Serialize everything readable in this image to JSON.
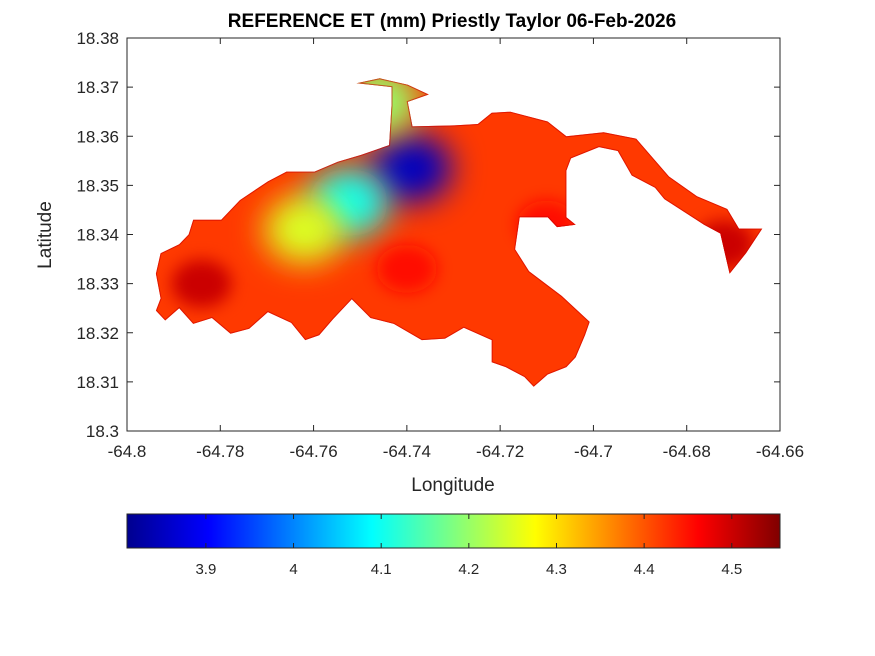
{
  "chart_data": {
    "type": "heatmap",
    "title": "REFERENCE ET (mm) Priestly Taylor 06-Feb-2026",
    "xlabel": "Longitude",
    "ylabel": "Latitude",
    "xlim": [
      -64.8,
      -64.66
    ],
    "ylim": [
      18.3,
      18.38
    ],
    "xticks": [
      -64.8,
      -64.78,
      -64.76,
      -64.74,
      -64.72,
      -64.7,
      -64.68,
      -64.66
    ],
    "xtick_labels": [
      "-64.8",
      "-64.78",
      "-64.76",
      "-64.74",
      "-64.72",
      "-64.7",
      "-64.68",
      "-64.66"
    ],
    "yticks": [
      18.3,
      18.31,
      18.32,
      18.33,
      18.34,
      18.35,
      18.36,
      18.37,
      18.38
    ],
    "ytick_labels": [
      "18.3",
      "18.31",
      "18.32",
      "18.33",
      "18.34",
      "18.35",
      "18.36",
      "18.37",
      "18.38"
    ],
    "colormap": "jet",
    "colorbar": {
      "location": "bottom",
      "range": [
        3.81,
        4.555
      ],
      "ticks": [
        3.9,
        4.0,
        4.1,
        4.2,
        4.3,
        4.4,
        4.5
      ],
      "tick_labels": [
        "3.9",
        "4",
        "4.1",
        "4.2",
        "4.3",
        "4.4",
        "4.5"
      ]
    },
    "boundary": [
      [
        -64.7928,
        18.3362
      ],
      [
        -64.7888,
        18.338
      ],
      [
        -64.7868,
        18.34
      ],
      [
        -64.7858,
        18.343
      ],
      [
        -64.7798,
        18.343
      ],
      [
        -64.7758,
        18.347
      ],
      [
        -64.7698,
        18.3508
      ],
      [
        -64.7658,
        18.3528
      ],
      [
        -64.7598,
        18.3528
      ],
      [
        -64.7548,
        18.3548
      ],
      [
        -64.7498,
        18.3562
      ],
      [
        -64.7438,
        18.3582
      ],
      [
        -64.7433,
        18.3662
      ],
      [
        -64.7433,
        18.37
      ],
      [
        -64.7508,
        18.3708
      ],
      [
        -64.7458,
        18.3718
      ],
      [
        -64.7398,
        18.3705
      ],
      [
        -64.7353,
        18.3685
      ],
      [
        -64.7398,
        18.367
      ],
      [
        -64.7388,
        18.362
      ],
      [
        -64.7298,
        18.3622
      ],
      [
        -64.7248,
        18.3625
      ],
      [
        -64.7218,
        18.3648
      ],
      [
        -64.7178,
        18.365
      ],
      [
        -64.7098,
        18.363
      ],
      [
        -64.7058,
        18.36
      ],
      [
        -64.6978,
        18.3608
      ],
      [
        -64.6908,
        18.3595
      ],
      [
        -64.6838,
        18.3518
      ],
      [
        -64.6778,
        18.3478
      ],
      [
        -64.6713,
        18.3452
      ],
      [
        -64.6688,
        18.3412
      ],
      [
        -64.6638,
        18.3412
      ],
      [
        -64.6673,
        18.3362
      ],
      [
        -64.6708,
        18.332
      ],
      [
        -64.6728,
        18.3402
      ],
      [
        -64.6763,
        18.342
      ],
      [
        -64.6848,
        18.3472
      ],
      [
        -64.6868,
        18.3495
      ],
      [
        -64.6918,
        18.352
      ],
      [
        -64.6948,
        18.357
      ],
      [
        -64.6988,
        18.3578
      ],
      [
        -64.7048,
        18.3555
      ],
      [
        -64.7058,
        18.353
      ],
      [
        -64.7058,
        18.3435
      ],
      [
        -64.7038,
        18.342
      ],
      [
        -64.7078,
        18.3415
      ],
      [
        -64.7098,
        18.3435
      ],
      [
        -64.7158,
        18.3435
      ],
      [
        -64.7168,
        18.337
      ],
      [
        -64.7138,
        18.3325
      ],
      [
        -64.7068,
        18.3275
      ],
      [
        -64.7008,
        18.3222
      ],
      [
        -64.7018,
        18.3195
      ],
      [
        -64.7038,
        18.315
      ],
      [
        -64.7058,
        18.313
      ],
      [
        -64.7098,
        18.3115
      ],
      [
        -64.7128,
        18.309
      ],
      [
        -64.7148,
        18.311
      ],
      [
        -64.7188,
        18.313
      ],
      [
        -64.7218,
        18.314
      ],
      [
        -64.7218,
        18.3185
      ],
      [
        -64.7278,
        18.321
      ],
      [
        -64.7318,
        18.3188
      ],
      [
        -64.7368,
        18.3185
      ],
      [
        -64.7428,
        18.3218
      ],
      [
        -64.7478,
        18.323
      ],
      [
        -64.7518,
        18.3268
      ],
      [
        -64.7558,
        18.3228
      ],
      [
        -64.7588,
        18.3195
      ],
      [
        -64.7618,
        18.3185
      ],
      [
        -64.7648,
        18.322
      ],
      [
        -64.7698,
        18.3242
      ],
      [
        -64.7738,
        18.3208
      ],
      [
        -64.7778,
        18.3198
      ],
      [
        -64.7818,
        18.323
      ],
      [
        -64.7858,
        18.3218
      ],
      [
        -64.7888,
        18.325
      ],
      [
        -64.7918,
        18.3225
      ],
      [
        -64.7938,
        18.3245
      ],
      [
        -64.7928,
        18.327
      ],
      [
        -64.7938,
        18.332
      ]
    ],
    "value_regions": [
      {
        "description": "Blue minimum",
        "lon": -64.739,
        "lat": 18.3535,
        "value": 3.85
      },
      {
        "description": "Cyan region",
        "lon": -64.7525,
        "lat": 18.3465,
        "value": 4.1
      },
      {
        "description": "Green/yellow band",
        "lon": -64.762,
        "lat": 18.341,
        "value": 4.25
      },
      {
        "description": "Northern tip",
        "lon": -64.746,
        "lat": 18.367,
        "value": 4.2
      },
      {
        "description": "Central-south",
        "lon": -64.74,
        "lat": 18.333,
        "value": 4.45
      },
      {
        "description": "West",
        "lon": -64.784,
        "lat": 18.33,
        "value": 4.5
      },
      {
        "description": "East",
        "lon": -64.71,
        "lat": 18.342,
        "value": 4.45
      },
      {
        "description": "Far east peninsula",
        "lon": -64.672,
        "lat": 18.338,
        "value": 4.5
      }
    ],
    "background_value": 4.42
  }
}
